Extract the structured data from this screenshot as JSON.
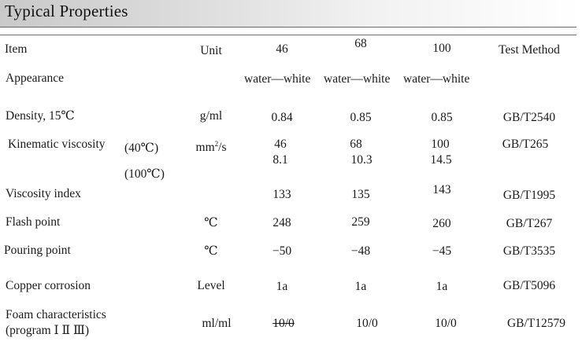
{
  "title": "Typical Properties",
  "header": {
    "item": "Item",
    "unit": "Unit",
    "grades": [
      "46",
      "68",
      "100"
    ],
    "test_method": "Test Method"
  },
  "rows": {
    "appearance": {
      "item": "Appearance",
      "values": [
        "water—white",
        "water—white",
        "water—white"
      ]
    },
    "density": {
      "item": "Density, 15℃",
      "unit": "g/ml",
      "values": [
        "0.84",
        "0.85",
        "0.85"
      ],
      "method": "GB/T2540"
    },
    "kinematic_viscosity": {
      "item": "Kinematic viscosity",
      "temp_40": "(40℃)",
      "temp_100": "(100℃)",
      "unit_base": "mm",
      "unit_exp": "2",
      "unit_tail": "/s",
      "values_40": [
        "46",
        "68",
        "100"
      ],
      "values_100": [
        "8.1",
        "10.3",
        "14.5"
      ],
      "method": "GB/T265"
    },
    "viscosity_index": {
      "item": "Viscosity index",
      "values": [
        "133",
        "135",
        "143"
      ],
      "method": "GB/T1995"
    },
    "flash_point": {
      "item": "Flash point",
      "unit": "℃",
      "values": [
        "248",
        "259",
        "260"
      ],
      "method": "GB/T267"
    },
    "pouring_point": {
      "item": "Pouring  point",
      "unit": "℃",
      "values": [
        "−50",
        "−48",
        "−45"
      ],
      "method": "GB/T3535"
    },
    "copper_corrosion": {
      "item": "Copper corrosion",
      "unit": "Level",
      "values": [
        "1a",
        "1a",
        "1a"
      ],
      "method": "GB/T5096"
    },
    "foam": {
      "item_line1": "Foam characteristics",
      "item_line2": "(program Ⅰ Ⅱ Ⅲ)",
      "unit": "ml/ml",
      "values": [
        "10/0",
        "10/0",
        "10/0"
      ],
      "method": "GB/T12579"
    }
  }
}
